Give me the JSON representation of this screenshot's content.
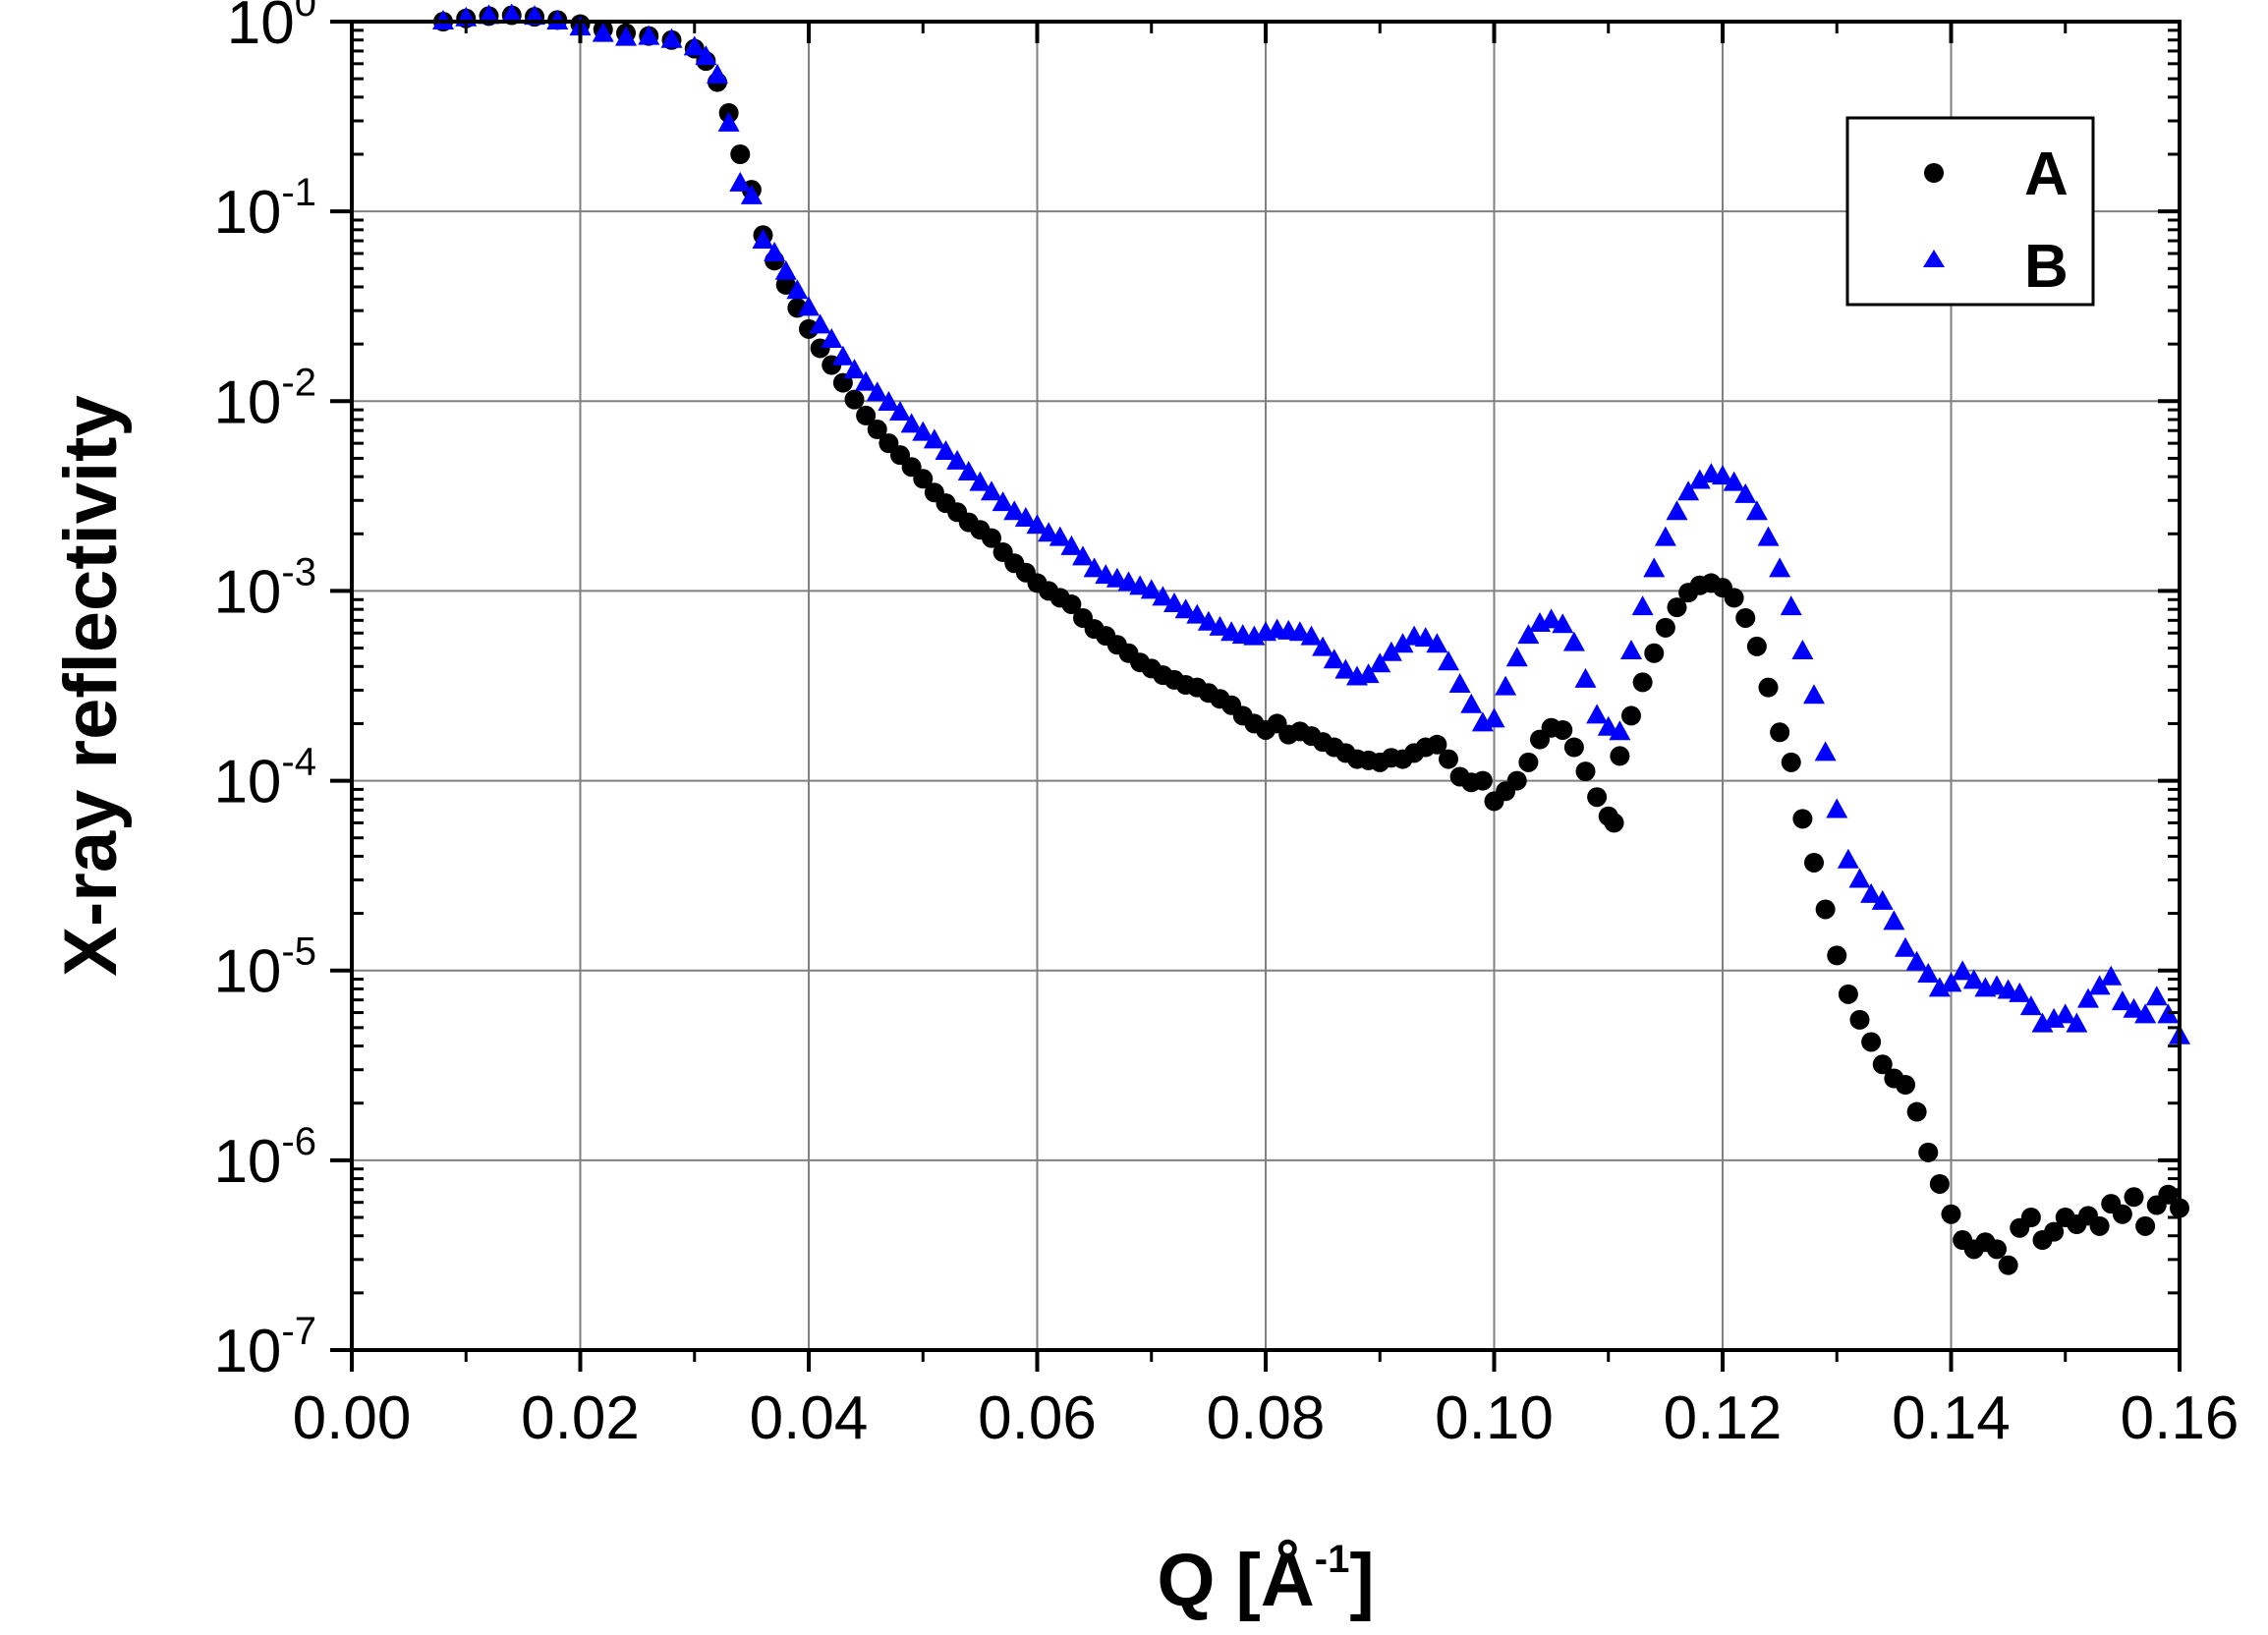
{
  "chart_data": {
    "type": "scatter",
    "xlabel": "Q [Å",
    "xlabel_exp": "-1",
    "xlabel_close": "]",
    "ylabel": "X-ray reflectivity",
    "xlim": [
      0.0,
      0.16
    ],
    "ylim": [
      1e-07,
      1.0
    ],
    "y_scale": "log",
    "grid": true,
    "legend_position": "top-right",
    "x_ticks": [
      "0.00",
      "0.02",
      "0.04",
      "0.06",
      "0.08",
      "0.10",
      "0.12",
      "0.14",
      "0.16"
    ],
    "y_ticks": [
      {
        "base": "10",
        "exp": "0"
      },
      {
        "base": "10",
        "exp": "-1"
      },
      {
        "base": "10",
        "exp": "-2"
      },
      {
        "base": "10",
        "exp": "-3"
      },
      {
        "base": "10",
        "exp": "-4"
      },
      {
        "base": "10",
        "exp": "-5"
      },
      {
        "base": "10",
        "exp": "-6"
      },
      {
        "base": "10",
        "exp": "-7"
      }
    ],
    "series": [
      {
        "name": "A",
        "marker": "circle",
        "color": "#000000",
        "points": [
          [
            0.008,
            1.0
          ],
          [
            0.01,
            1.04
          ],
          [
            0.012,
            1.07
          ],
          [
            0.014,
            1.08
          ],
          [
            0.016,
            1.06
          ],
          [
            0.018,
            1.02
          ],
          [
            0.02,
            0.97
          ],
          [
            0.022,
            0.91
          ],
          [
            0.024,
            0.87
          ],
          [
            0.026,
            0.84
          ],
          [
            0.028,
            0.8
          ],
          [
            0.03,
            0.72
          ],
          [
            0.031,
            0.62
          ],
          [
            0.032,
            0.48
          ],
          [
            0.033,
            0.33
          ],
          [
            0.034,
            0.2
          ],
          [
            0.035,
            0.13
          ],
          [
            0.036,
            0.075
          ],
          [
            0.037,
            0.055
          ],
          [
            0.038,
            0.041
          ],
          [
            0.039,
            0.031
          ],
          [
            0.04,
            0.024
          ],
          [
            0.041,
            0.019
          ],
          [
            0.042,
            0.0155
          ],
          [
            0.043,
            0.0125
          ],
          [
            0.044,
            0.0102
          ],
          [
            0.045,
            0.0084
          ],
          [
            0.046,
            0.0071
          ],
          [
            0.047,
            0.006
          ],
          [
            0.048,
            0.0052
          ],
          [
            0.049,
            0.0045
          ],
          [
            0.05,
            0.0039
          ],
          [
            0.051,
            0.0033
          ],
          [
            0.052,
            0.0029
          ],
          [
            0.053,
            0.0026
          ],
          [
            0.054,
            0.0023
          ],
          [
            0.055,
            0.0021
          ],
          [
            0.056,
            0.0019
          ],
          [
            0.057,
            0.0016
          ],
          [
            0.058,
            0.0014
          ],
          [
            0.059,
            0.00125
          ],
          [
            0.06,
            0.0011
          ],
          [
            0.061,
            0.001
          ],
          [
            0.062,
            0.00092
          ],
          [
            0.063,
            0.00085
          ],
          [
            0.064,
            0.00072
          ],
          [
            0.065,
            0.00063
          ],
          [
            0.066,
            0.00058
          ],
          [
            0.067,
            0.00052
          ],
          [
            0.068,
            0.00047
          ],
          [
            0.069,
            0.00042
          ],
          [
            0.07,
            0.00039
          ],
          [
            0.071,
            0.00036
          ],
          [
            0.072,
            0.00034
          ],
          [
            0.073,
            0.00032
          ],
          [
            0.074,
            0.00031
          ],
          [
            0.075,
            0.00029
          ],
          [
            0.076,
            0.00027
          ],
          [
            0.077,
            0.00025
          ],
          [
            0.078,
            0.00022
          ],
          [
            0.079,
            0.0002
          ],
          [
            0.08,
            0.000185
          ],
          [
            0.081,
            0.0002
          ],
          [
            0.082,
            0.000175
          ],
          [
            0.083,
            0.000182
          ],
          [
            0.084,
            0.000172
          ],
          [
            0.085,
            0.00016
          ],
          [
            0.086,
            0.00015
          ],
          [
            0.087,
            0.00014
          ],
          [
            0.088,
            0.00013
          ],
          [
            0.089,
            0.000128
          ],
          [
            0.09,
            0.000125
          ],
          [
            0.091,
            0.000132
          ],
          [
            0.092,
            0.00013
          ],
          [
            0.093,
            0.00014
          ],
          [
            0.094,
            0.00015
          ],
          [
            0.095,
            0.000155
          ],
          [
            0.096,
            0.00013
          ],
          [
            0.097,
            0.000105
          ],
          [
            0.098,
            9.8e-05
          ],
          [
            0.099,
            0.0001
          ],
          [
            0.1,
            7.8e-05
          ],
          [
            0.101,
            8.8e-05
          ],
          [
            0.102,
            0.0001
          ],
          [
            0.103,
            0.000125
          ],
          [
            0.104,
            0.000165
          ],
          [
            0.105,
            0.00019
          ],
          [
            0.106,
            0.000185
          ],
          [
            0.107,
            0.00015
          ],
          [
            0.108,
            0.000112
          ],
          [
            0.109,
            8.2e-05
          ],
          [
            0.11,
            6.5e-05
          ],
          [
            0.1105,
            6e-05
          ],
          [
            0.111,
            0.000135
          ],
          [
            0.112,
            0.00022
          ],
          [
            0.113,
            0.00033
          ],
          [
            0.114,
            0.00047
          ],
          [
            0.115,
            0.00064
          ],
          [
            0.116,
            0.00082
          ],
          [
            0.117,
            0.00098
          ],
          [
            0.118,
            0.00107
          ],
          [
            0.119,
            0.0011
          ],
          [
            0.12,
            0.00104
          ],
          [
            0.121,
            0.00092
          ],
          [
            0.122,
            0.00072
          ],
          [
            0.123,
            0.00051
          ],
          [
            0.124,
            0.00031
          ],
          [
            0.125,
            0.00018
          ],
          [
            0.126,
            0.000125
          ],
          [
            0.127,
            6.3e-05
          ],
          [
            0.128,
            3.7e-05
          ],
          [
            0.129,
            2.1e-05
          ],
          [
            0.13,
            1.2e-05
          ],
          [
            0.131,
            7.5e-06
          ],
          [
            0.132,
            5.5e-06
          ],
          [
            0.133,
            4.2e-06
          ],
          [
            0.134,
            3.2e-06
          ],
          [
            0.135,
            2.7e-06
          ],
          [
            0.136,
            2.5e-06
          ],
          [
            0.137,
            1.8e-06
          ],
          [
            0.138,
            1.1e-06
          ],
          [
            0.139,
            7.5e-07
          ],
          [
            0.14,
            5.2e-07
          ],
          [
            0.141,
            3.8e-07
          ],
          [
            0.142,
            3.4e-07
          ],
          [
            0.143,
            3.7e-07
          ],
          [
            0.144,
            3.4e-07
          ],
          [
            0.145,
            2.8e-07
          ],
          [
            0.146,
            4.4e-07
          ],
          [
            0.147,
            5e-07
          ],
          [
            0.148,
            3.8e-07
          ],
          [
            0.149,
            4.2e-07
          ],
          [
            0.15,
            5e-07
          ],
          [
            0.151,
            4.6e-07
          ],
          [
            0.152,
            5.1e-07
          ],
          [
            0.153,
            4.5e-07
          ],
          [
            0.154,
            5.9e-07
          ],
          [
            0.155,
            5.2e-07
          ],
          [
            0.156,
            6.4e-07
          ],
          [
            0.157,
            4.5e-07
          ],
          [
            0.158,
            5.8e-07
          ],
          [
            0.159,
            6.6e-07
          ],
          [
            0.16,
            5.6e-07
          ]
        ]
      },
      {
        "name": "B",
        "marker": "triangle",
        "color": "#0000ff",
        "points": [
          [
            0.008,
            1.0
          ],
          [
            0.01,
            1.04
          ],
          [
            0.012,
            1.07
          ],
          [
            0.014,
            1.08
          ],
          [
            0.016,
            1.06
          ],
          [
            0.018,
            1.0
          ],
          [
            0.02,
            0.93
          ],
          [
            0.022,
            0.86
          ],
          [
            0.024,
            0.82
          ],
          [
            0.026,
            0.83
          ],
          [
            0.028,
            0.8
          ],
          [
            0.03,
            0.73
          ],
          [
            0.031,
            0.65
          ],
          [
            0.032,
            0.52
          ],
          [
            0.033,
            0.29
          ],
          [
            0.034,
            0.14
          ],
          [
            0.035,
            0.12
          ],
          [
            0.036,
            0.07
          ],
          [
            0.037,
            0.06
          ],
          [
            0.038,
            0.048
          ],
          [
            0.039,
            0.038
          ],
          [
            0.04,
            0.031
          ],
          [
            0.041,
            0.025
          ],
          [
            0.042,
            0.021
          ],
          [
            0.043,
            0.017
          ],
          [
            0.044,
            0.0145
          ],
          [
            0.045,
            0.0125
          ],
          [
            0.046,
            0.011
          ],
          [
            0.047,
            0.0098
          ],
          [
            0.048,
            0.0087
          ],
          [
            0.049,
            0.0075
          ],
          [
            0.05,
            0.0068
          ],
          [
            0.051,
            0.0062
          ],
          [
            0.052,
            0.0054
          ],
          [
            0.053,
            0.0048
          ],
          [
            0.054,
            0.0042
          ],
          [
            0.055,
            0.0037
          ],
          [
            0.056,
            0.0033
          ],
          [
            0.057,
            0.0029
          ],
          [
            0.058,
            0.0026
          ],
          [
            0.059,
            0.0024
          ],
          [
            0.06,
            0.0022
          ],
          [
            0.061,
            0.002
          ],
          [
            0.062,
            0.0019
          ],
          [
            0.063,
            0.0017
          ],
          [
            0.064,
            0.0015
          ],
          [
            0.065,
            0.0013
          ],
          [
            0.066,
            0.0012
          ],
          [
            0.067,
            0.00115
          ],
          [
            0.068,
            0.0011
          ],
          [
            0.069,
            0.00105
          ],
          [
            0.07,
            0.001
          ],
          [
            0.071,
            0.00092
          ],
          [
            0.072,
            0.00085
          ],
          [
            0.073,
            0.00079
          ],
          [
            0.074,
            0.00074
          ],
          [
            0.075,
            0.00068
          ],
          [
            0.076,
            0.00064
          ],
          [
            0.077,
            0.0006
          ],
          [
            0.078,
            0.00058
          ],
          [
            0.079,
            0.00057
          ],
          [
            0.08,
            0.0006
          ],
          [
            0.081,
            0.00062
          ],
          [
            0.082,
            0.00061
          ],
          [
            0.083,
            0.0006
          ],
          [
            0.084,
            0.00057
          ],
          [
            0.085,
            0.0005
          ],
          [
            0.086,
            0.00043
          ],
          [
            0.087,
            0.00038
          ],
          [
            0.088,
            0.00035
          ],
          [
            0.089,
            0.00036
          ],
          [
            0.09,
            0.00041
          ],
          [
            0.091,
            0.00047
          ],
          [
            0.092,
            0.00052
          ],
          [
            0.093,
            0.00057
          ],
          [
            0.094,
            0.00056
          ],
          [
            0.095,
            0.00052
          ],
          [
            0.096,
            0.00042
          ],
          [
            0.097,
            0.00032
          ],
          [
            0.098,
            0.00025
          ],
          [
            0.099,
            0.0002
          ],
          [
            0.1,
            0.00021
          ],
          [
            0.101,
            0.00031
          ],
          [
            0.102,
            0.00044
          ],
          [
            0.103,
            0.00058
          ],
          [
            0.104,
            0.00067
          ],
          [
            0.105,
            0.0007
          ],
          [
            0.106,
            0.00066
          ],
          [
            0.107,
            0.00053
          ],
          [
            0.108,
            0.00034
          ],
          [
            0.109,
            0.00022
          ],
          [
            0.11,
            0.00019
          ],
          [
            0.111,
            0.00018
          ],
          [
            0.112,
            0.00048
          ],
          [
            0.113,
            0.00082
          ],
          [
            0.114,
            0.0013
          ],
          [
            0.115,
            0.0019
          ],
          [
            0.116,
            0.0026
          ],
          [
            0.117,
            0.0033
          ],
          [
            0.118,
            0.0038
          ],
          [
            0.119,
            0.0041
          ],
          [
            0.12,
            0.004
          ],
          [
            0.121,
            0.0037
          ],
          [
            0.122,
            0.0032
          ],
          [
            0.123,
            0.0026
          ],
          [
            0.124,
            0.0019
          ],
          [
            0.125,
            0.0013
          ],
          [
            0.126,
            0.00082
          ],
          [
            0.127,
            0.00048
          ],
          [
            0.128,
            0.00028
          ],
          [
            0.129,
            0.00014
          ],
          [
            0.13,
            7e-05
          ],
          [
            0.131,
            3.8e-05
          ],
          [
            0.132,
            3e-05
          ],
          [
            0.133,
            2.5e-05
          ],
          [
            0.134,
            2.3e-05
          ],
          [
            0.135,
            1.8e-05
          ],
          [
            0.136,
            1.3e-05
          ],
          [
            0.137,
            1.1e-05
          ],
          [
            0.138,
            9.5e-06
          ],
          [
            0.139,
            8e-06
          ],
          [
            0.14,
            8.5e-06
          ],
          [
            0.141,
            9.8e-06
          ],
          [
            0.142,
            8.8e-06
          ],
          [
            0.143,
            8e-06
          ],
          [
            0.144,
            8.2e-06
          ],
          [
            0.145,
            7.8e-06
          ],
          [
            0.146,
            7.5e-06
          ],
          [
            0.147,
            6.4e-06
          ],
          [
            0.148,
            5.2e-06
          ],
          [
            0.149,
            5.5e-06
          ],
          [
            0.15,
            5.8e-06
          ],
          [
            0.151,
            5.2e-06
          ],
          [
            0.152,
            7e-06
          ],
          [
            0.153,
            8.2e-06
          ],
          [
            0.154,
            9.2e-06
          ],
          [
            0.155,
            6.8e-06
          ],
          [
            0.156,
            6.2e-06
          ],
          [
            0.157,
            5.8e-06
          ],
          [
            0.158,
            7.2e-06
          ],
          [
            0.159,
            5.8e-06
          ],
          [
            0.16,
            4.5e-06
          ]
        ]
      }
    ]
  }
}
